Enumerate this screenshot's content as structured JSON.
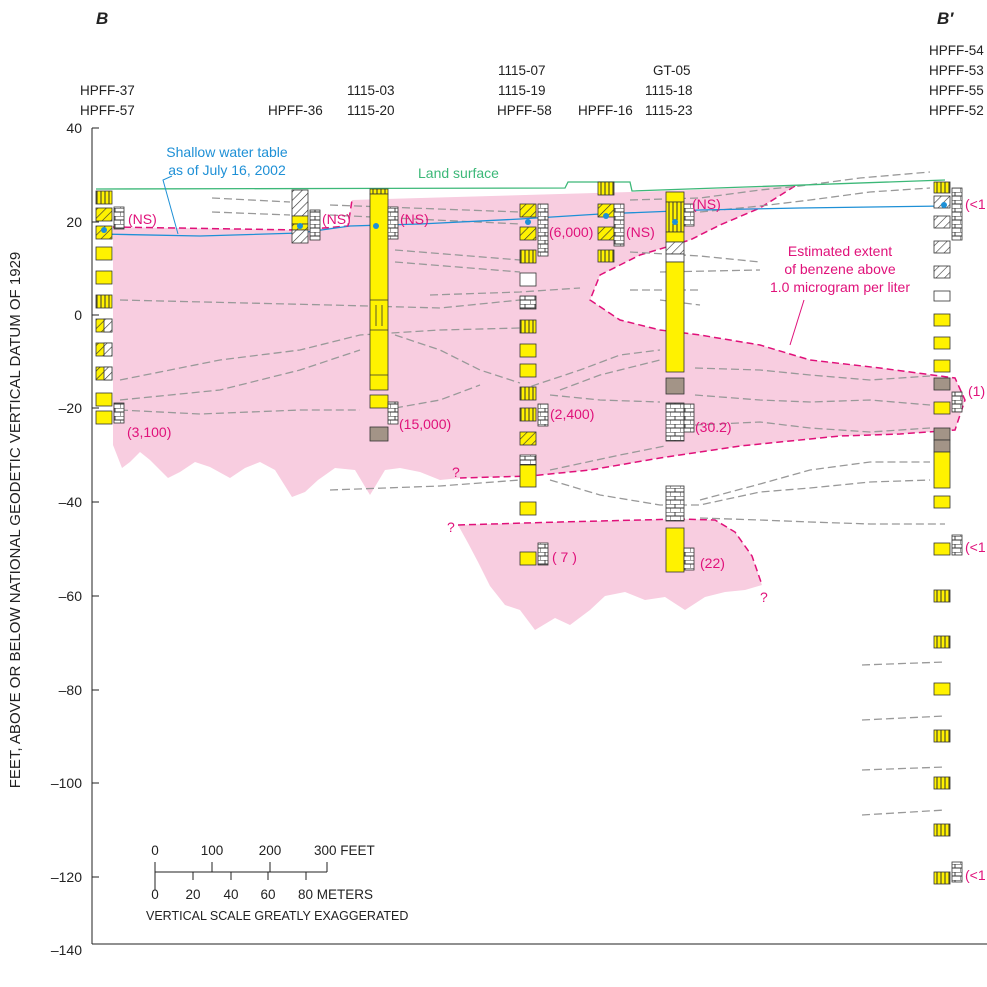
{
  "section": {
    "start_label": "B",
    "end_label": "B′"
  },
  "y_axis": {
    "label": "FEET, ABOVE OR BELOW NATIONAL GEODETIC VERTICAL DATUM OF 1929",
    "ticks": [
      "40",
      "20",
      "0",
      "–20",
      "–40",
      "–60",
      "–80",
      "–100",
      "–120",
      "–140"
    ]
  },
  "wells": {
    "hpff37": "HPFF-37",
    "hpff57": "HPFF-57",
    "hpff36": "HPFF-36",
    "w111503": "1115-03",
    "w111520": "1115-20",
    "w111507": "1115-07",
    "w111519": "1115-19",
    "hpff58": "HPFF-58",
    "hpff16": "HPFF-16",
    "gt05": "GT-05",
    "w111518": "1115-18",
    "w111523": "1115-23",
    "hpff54": "HPFF-54",
    "hpff53": "HPFF-53",
    "hpff55": "HPFF-55",
    "hpff52": "HPFF-52"
  },
  "annotations": {
    "water_table_1": "Shallow water table",
    "water_table_2": "as of July 16, 2002",
    "land_surface": "Land surface",
    "extent_1": "Estimated extent",
    "extent_2": "of benzene above",
    "extent_3": "1.0 microgram per liter",
    "q": "?"
  },
  "concentrations": {
    "ns": "(NS)",
    "c3100": "(3,100)",
    "c15000": "(15,000)",
    "c6000": "(6,000)",
    "c2400": "(2,400)",
    "c7": "( 7 )",
    "c30": "(30.2)",
    "c22": "(22)",
    "lt1": "(<1",
    "one": "(1)"
  },
  "scale_bar": {
    "ft0": "0",
    "ft100": "100",
    "ft200": "200",
    "ft300": "300 FEET",
    "m0": "0",
    "m20": "20",
    "m40": "40",
    "m60": "60",
    "m80": "80 METERS",
    "note": "VERTICAL SCALE GREATLY EXAGGERATED"
  },
  "colors": {
    "plume": "#f8cde0",
    "plume_edge": "#e0117a",
    "water_table": "#1e90d6",
    "land_surface": "#3cb878",
    "sand": "#fff200",
    "clay": "#a39487",
    "correlation": "#999999"
  }
}
